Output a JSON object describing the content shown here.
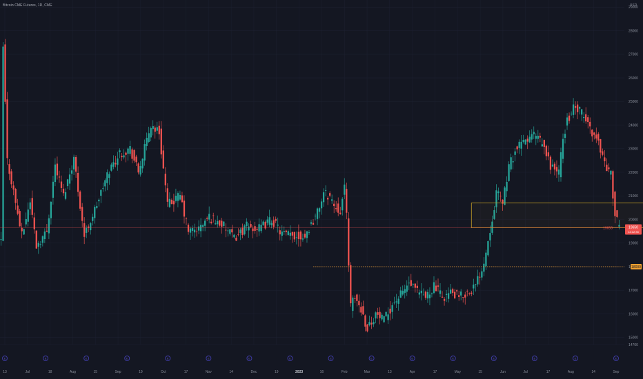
{
  "header": {
    "title": "Bitcoin CME Futures, 1D, CME"
  },
  "colors": {
    "background": "#141722",
    "up": "#26a69a",
    "down": "#ef5350",
    "zone_border": "#c9a227",
    "price_line": "#ef5350",
    "level_line": "#f0a030",
    "grid": "#1c2030"
  },
  "chart_data": {
    "type": "candlestick",
    "title": "Bitcoin CME Futures, 1D, CME",
    "y_unit": "USD",
    "ylim": [
      14700,
      29300
    ],
    "grid": true,
    "y_ticks": [
      "29000",
      "28000",
      "27000",
      "26000",
      "25000",
      "24000",
      "23000",
      "22000",
      "21000",
      "20000",
      "19000",
      "18000",
      "17000",
      "16000",
      "15000",
      "14700"
    ],
    "x_ticks": [
      {
        "label": "13",
        "bold": false
      },
      {
        "label": "Jul",
        "bold": false
      },
      {
        "label": "18",
        "bold": false
      },
      {
        "label": "Aug",
        "bold": false
      },
      {
        "label": "15",
        "bold": false
      },
      {
        "label": "Sep",
        "bold": false
      },
      {
        "label": "19",
        "bold": false
      },
      {
        "label": "Oct",
        "bold": false
      },
      {
        "label": "17",
        "bold": false
      },
      {
        "label": "Nov",
        "bold": false
      },
      {
        "label": "14",
        "bold": false
      },
      {
        "label": "Dec",
        "bold": false
      },
      {
        "label": "19",
        "bold": false
      },
      {
        "label": "2023",
        "bold": true
      },
      {
        "label": "16",
        "bold": false
      },
      {
        "label": "Feb",
        "bold": false
      },
      {
        "label": "Mar",
        "bold": false
      },
      {
        "label": "13",
        "bold": false
      },
      {
        "label": "Apr",
        "bold": false
      },
      {
        "label": "17",
        "bold": false
      },
      {
        "label": "May",
        "bold": false
      },
      {
        "label": "15",
        "bold": false
      },
      {
        "label": "Jun",
        "bold": false
      },
      {
        "label": "Jul",
        "bold": false
      },
      {
        "label": "17",
        "bold": false
      },
      {
        "label": "Aug",
        "bold": false
      },
      {
        "label": "14",
        "bold": false
      },
      {
        "label": "Sep",
        "bold": false
      }
    ],
    "events": [
      "E",
      "E",
      "E",
      "E",
      "E",
      "E",
      "E",
      "E",
      "E",
      "E",
      "E",
      "E",
      "E",
      "E",
      "E",
      "E"
    ],
    "close_anchors": [
      [
        0,
        19000
      ],
      [
        1,
        27300
      ],
      [
        3,
        22500
      ],
      [
        6,
        21200
      ],
      [
        10,
        19300
      ],
      [
        14,
        20800
      ],
      [
        17,
        18900
      ],
      [
        22,
        19500
      ],
      [
        26,
        22300
      ],
      [
        30,
        21000
      ],
      [
        35,
        22600
      ],
      [
        40,
        19300
      ],
      [
        45,
        20400
      ],
      [
        52,
        22100
      ],
      [
        57,
        22800
      ],
      [
        62,
        23000
      ],
      [
        66,
        22000
      ],
      [
        72,
        24000
      ],
      [
        76,
        23700
      ],
      [
        80,
        20600
      ],
      [
        86,
        21000
      ],
      [
        90,
        19500
      ],
      [
        95,
        19600
      ],
      [
        100,
        20100
      ],
      [
        106,
        19800
      ],
      [
        112,
        19200
      ],
      [
        118,
        19700
      ],
      [
        124,
        19600
      ],
      [
        130,
        20000
      ],
      [
        135,
        19400
      ],
      [
        140,
        19300
      ],
      [
        146,
        19300
      ],
      [
        152,
        20300
      ],
      [
        155,
        21100
      ],
      [
        158,
        21000
      ],
      [
        160,
        20600
      ],
      [
        163,
        20400
      ],
      [
        165,
        21300
      ],
      [
        166,
        20200
      ],
      [
        168,
        16300
      ],
      [
        170,
        16700
      ],
      [
        173,
        16200
      ],
      [
        176,
        15400
      ],
      [
        180,
        16000
      ],
      [
        184,
        15700
      ],
      [
        188,
        16400
      ],
      [
        192,
        16800
      ],
      [
        196,
        17300
      ],
      [
        200,
        16900
      ],
      [
        204,
        16700
      ],
      [
        208,
        17200
      ],
      [
        212,
        16700
      ],
      [
        216,
        16900
      ],
      [
        220,
        16700
      ],
      [
        224,
        16900
      ],
      [
        228,
        17200
      ],
      [
        232,
        18200
      ],
      [
        235,
        19600
      ],
      [
        238,
        21100
      ],
      [
        241,
        20800
      ],
      [
        244,
        22200
      ],
      [
        247,
        22900
      ],
      [
        250,
        23200
      ],
      [
        253,
        23400
      ],
      [
        256,
        23600
      ],
      [
        260,
        23200
      ],
      [
        264,
        22300
      ],
      [
        268,
        22000
      ],
      [
        270,
        23400
      ],
      [
        272,
        24200
      ],
      [
        275,
        24700
      ],
      [
        278,
        24600
      ],
      [
        281,
        24200
      ],
      [
        284,
        23700
      ],
      [
        287,
        23300
      ],
      [
        290,
        22400
      ],
      [
        293,
        21900
      ],
      [
        295,
        20200
      ],
      [
        297,
        19600
      ]
    ],
    "zone": {
      "x_start": 226,
      "x_end": 396,
      "y_top": 20700,
      "y_bottom": 19650
    },
    "price_line": {
      "value": 19650
    },
    "level_line": {
      "value": 18000,
      "x_start": 150
    },
    "labels": {
      "price_tag": "19650",
      "price_tag_sub": "14:12:33",
      "level_tag": "18000",
      "current_price": "19650"
    }
  }
}
